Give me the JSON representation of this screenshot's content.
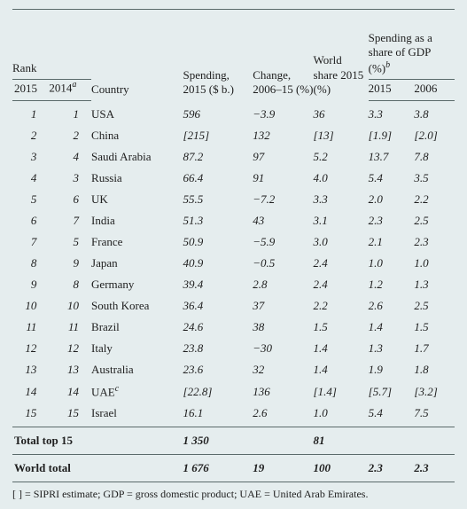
{
  "background_color": "#e5edee",
  "rule_color": "#5a6a6a",
  "font_family": "Georgia, serif",
  "font_size_body": 13,
  "font_size_footnote": 12,
  "headers": {
    "rank": "Rank",
    "country": "Country",
    "spending": "Spending, 2015 ($ b.)",
    "change": "Change, 2006–15 (%)",
    "world_share": "World share 2015 (%)",
    "gdp_share": "Spending as a share of GDP (%)",
    "gdp_share_sup": "b",
    "rank_2015": "2015",
    "rank_2014": "2014",
    "rank_2014_sup": "a",
    "gdp_2015": "2015",
    "gdp_2006": "2006"
  },
  "rows": [
    {
      "r15": "1",
      "r14": "1",
      "country": "USA",
      "spend": "596",
      "chg": "−3.9",
      "ws": "36",
      "g15": "3.3",
      "g06": "3.8"
    },
    {
      "r15": "2",
      "r14": "2",
      "country": "China",
      "spend": "[215]",
      "chg": "132",
      "ws": "[13]",
      "g15": "[1.9]",
      "g06": "[2.0]"
    },
    {
      "r15": "3",
      "r14": "4",
      "country": "Saudi Arabia",
      "spend": "87.2",
      "chg": "97",
      "ws": "5.2",
      "g15": "13.7",
      "g06": "7.8"
    },
    {
      "r15": "4",
      "r14": "3",
      "country": "Russia",
      "spend": "66.4",
      "chg": "91",
      "ws": "4.0",
      "g15": "5.4",
      "g06": "3.5"
    },
    {
      "r15": "5",
      "r14": "6",
      "country": "UK",
      "spend": "55.5",
      "chg": "−7.2",
      "ws": "3.3",
      "g15": "2.0",
      "g06": "2.2"
    },
    {
      "r15": "6",
      "r14": "7",
      "country": "India",
      "spend": "51.3",
      "chg": "43",
      "ws": "3.1",
      "g15": "2.3",
      "g06": "2.5"
    },
    {
      "r15": "7",
      "r14": "5",
      "country": "France",
      "spend": "50.9",
      "chg": "−5.9",
      "ws": "3.0",
      "g15": "2.1",
      "g06": "2.3"
    },
    {
      "r15": "8",
      "r14": "9",
      "country": "Japan",
      "spend": "40.9",
      "chg": "−0.5",
      "ws": "2.4",
      "g15": "1.0",
      "g06": "1.0"
    },
    {
      "r15": "9",
      "r14": "8",
      "country": "Germany",
      "spend": "39.4",
      "chg": "2.8",
      "ws": "2.4",
      "g15": "1.2",
      "g06": "1.3"
    },
    {
      "r15": "10",
      "r14": "10",
      "country": "South Korea",
      "spend": "36.4",
      "chg": "37",
      "ws": "2.2",
      "g15": "2.6",
      "g06": "2.5"
    },
    {
      "r15": "11",
      "r14": "11",
      "country": "Brazil",
      "spend": "24.6",
      "chg": "38",
      "ws": "1.5",
      "g15": "1.4",
      "g06": "1.5"
    },
    {
      "r15": "12",
      "r14": "12",
      "country": "Italy",
      "spend": "23.8",
      "chg": "−30",
      "ws": "1.4",
      "g15": "1.3",
      "g06": "1.7"
    },
    {
      "r15": "13",
      "r14": "13",
      "country": "Australia",
      "spend": "23.6",
      "chg": "32",
      "ws": "1.4",
      "g15": "1.9",
      "g06": "1.8"
    },
    {
      "r15": "14",
      "r14": "14",
      "country": "UAE",
      "country_sup": "c",
      "spend": "[22.8]",
      "chg": "136",
      "ws": "[1.4]",
      "g15": "[5.7]",
      "g06": "[3.2]"
    },
    {
      "r15": "15",
      "r14": "15",
      "country": "Israel",
      "spend": "16.1",
      "chg": "2.6",
      "ws": "1.0",
      "g15": "5.4",
      "g06": "7.5"
    }
  ],
  "totals": [
    {
      "label": "Total top 15",
      "spend": "1 350",
      "chg": "",
      "ws": "81",
      "g15": "",
      "g06": ""
    },
    {
      "label": "World total",
      "spend": "1 676",
      "chg": "19",
      "ws": "100",
      "g15": "2.3",
      "g06": "2.3"
    }
  ],
  "footnote": "[ ] = SIPRI estimate; GDP = gross domestic product; UAE = United Arab Emirates."
}
